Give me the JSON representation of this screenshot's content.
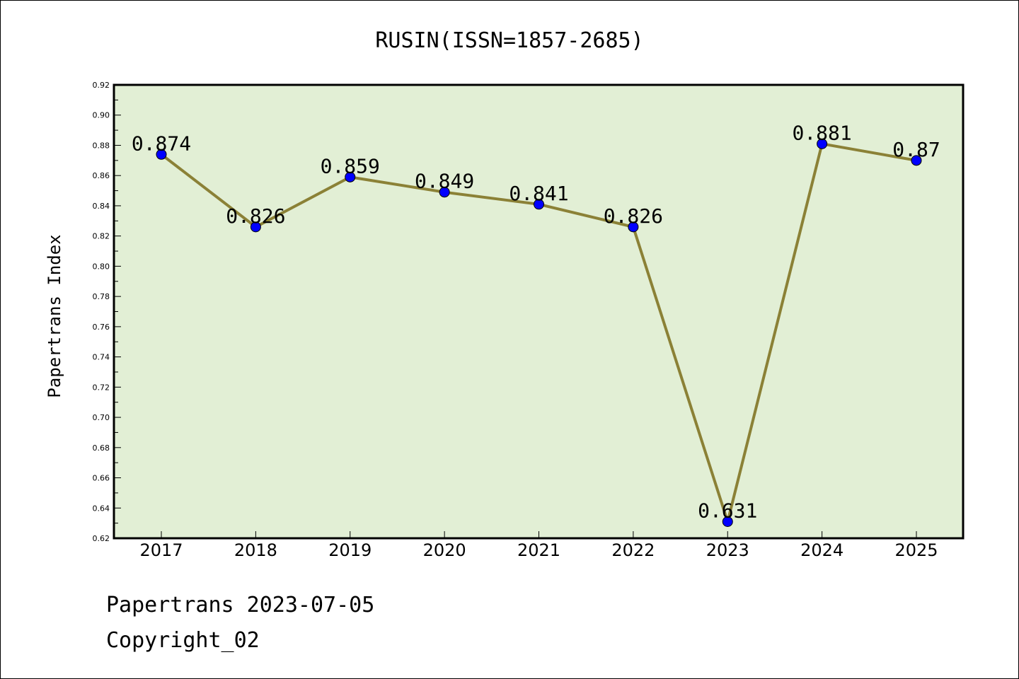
{
  "chart_data": {
    "type": "line",
    "title": "RUSIN(ISSN=1857-2685)",
    "xlabel": "",
    "ylabel": "Papertrans Index",
    "categories": [
      "2017",
      "2018",
      "2019",
      "2020",
      "2021",
      "2022",
      "2023",
      "2024",
      "2025"
    ],
    "series": [
      {
        "values": [
          0.874,
          0.826,
          0.859,
          0.849,
          0.841,
          0.826,
          0.631,
          0.881,
          0.87
        ],
        "labels": [
          "0.874",
          "0.826",
          "0.859",
          "0.849",
          "0.841",
          "0.826",
          "0.631",
          "0.881",
          "0.87"
        ],
        "line_color": "#8b8136",
        "marker_color": "#0000ff"
      }
    ],
    "ylim": [
      0.62,
      0.92
    ],
    "yticks": [
      "0.62",
      "0.64",
      "0.66",
      "0.68",
      "0.70",
      "0.72",
      "0.74",
      "0.76",
      "0.78",
      "0.80",
      "0.82",
      "0.84",
      "0.86",
      "0.88",
      "0.90",
      "0.92"
    ],
    "plot_background": "#e2efd5",
    "grid": false,
    "legend": "none"
  },
  "footer": {
    "line1": "Papertrans 2023-07-05",
    "line2": "Copyright_02"
  }
}
